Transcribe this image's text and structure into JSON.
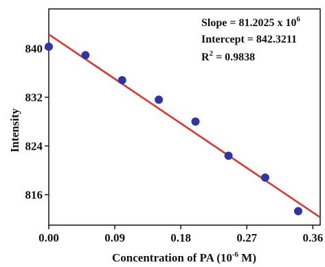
{
  "chart_data": {
    "type": "scatter",
    "xlabel": "Concentration of PA (10",
    "xlabel_sup": "-6",
    "xlabel_tail": " M)",
    "ylabel": "Intensity",
    "xlim": [
      0,
      0.37
    ],
    "ylim": [
      811,
      846.5
    ],
    "xticks": [
      0.0,
      0.09,
      0.18,
      0.27,
      0.36
    ],
    "xtick_labels": [
      "0.00",
      "0.09",
      "0.18",
      "0.27",
      "0.36"
    ],
    "yticks": [
      816,
      824,
      832,
      840
    ],
    "ytick_labels": [
      "816",
      "824",
      "832",
      "840"
    ],
    "grid": false,
    "points": {
      "x": [
        0.0,
        0.05,
        0.1,
        0.15,
        0.2,
        0.245,
        0.295,
        0.34
      ],
      "y": [
        840.3,
        838.9,
        834.8,
        831.6,
        828.0,
        822.4,
        818.8,
        813.3
      ]
    },
    "fit": {
      "slope": -81.2025,
      "intercept": 842.3211
    },
    "annotations": {
      "slope": "Slope = 81.2025 x 10",
      "slope_sup": "6",
      "intercept": "Intercept = 842.3211",
      "r2_prefix": "R",
      "r2_sup": "2",
      "r2_tail": " = 0.9838"
    },
    "colors": {
      "points": "#2e35a6",
      "fit_line": "#e8312c",
      "axis": "#111111"
    }
  }
}
